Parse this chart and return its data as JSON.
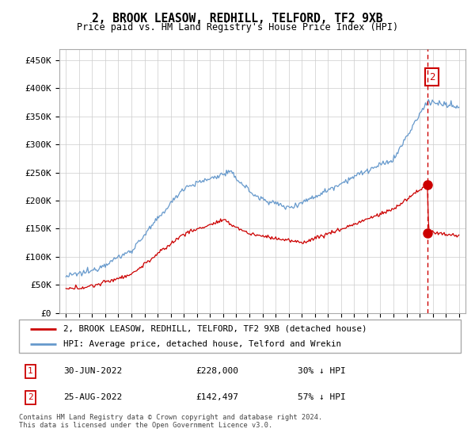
{
  "title": "2, BROOK LEASOW, REDHILL, TELFORD, TF2 9XB",
  "subtitle": "Price paid vs. HM Land Registry's House Price Index (HPI)",
  "legend_line1": "2, BROOK LEASOW, REDHILL, TELFORD, TF2 9XB (detached house)",
  "legend_line2": "HPI: Average price, detached house, Telford and Wrekin",
  "transaction1_date": "30-JUN-2022",
  "transaction1_price": "£228,000",
  "transaction1_hpi": "30% ↓ HPI",
  "transaction2_date": "25-AUG-2022",
  "transaction2_price": "£142,497",
  "transaction2_hpi": "57% ↓ HPI",
  "footer": "Contains HM Land Registry data © Crown copyright and database right 2024.\nThis data is licensed under the Open Government Licence v3.0.",
  "ylim": [
    0,
    470000
  ],
  "yticks": [
    0,
    50000,
    100000,
    150000,
    200000,
    250000,
    300000,
    350000,
    400000,
    450000
  ],
  "ytick_labels": [
    "£0",
    "£50K",
    "£100K",
    "£150K",
    "£200K",
    "£250K",
    "£300K",
    "£350K",
    "£400K",
    "£450K"
  ],
  "hpi_color": "#6699cc",
  "price_color": "#cc0000",
  "transaction1_value": 228000,
  "transaction2_value": 142497,
  "transaction_year": 2022.58,
  "background_color": "#ffffff",
  "grid_color": "#cccccc",
  "xlim": [
    1994.5,
    2025.5
  ]
}
